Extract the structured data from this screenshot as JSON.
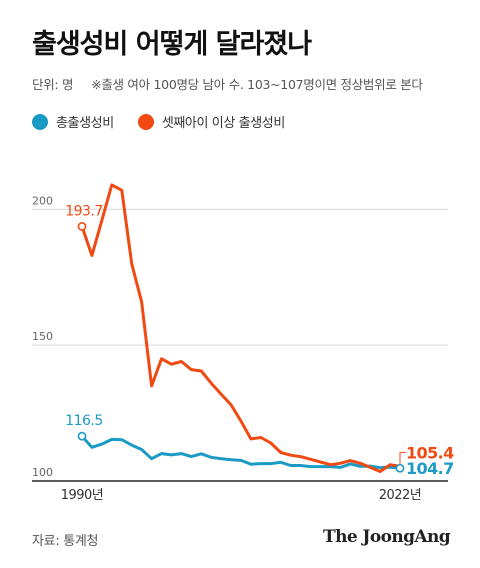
{
  "header": {
    "title": "출생성비 어떻게 달라졌나",
    "unit": "단위: 명",
    "note": "※출생 여아 100명당 남아 수. 103~107명이면 정상범위로 본다"
  },
  "legend": {
    "items": [
      {
        "label": "총출생성비",
        "color": "#1a9ac4"
      },
      {
        "label": "셋째아이 이상 출생성비",
        "color": "#f04a12"
      }
    ]
  },
  "chart_data": {
    "type": "line",
    "x": [
      1990,
      1991,
      1992,
      1993,
      1994,
      1995,
      1996,
      1997,
      1998,
      1999,
      2000,
      2001,
      2002,
      2003,
      2004,
      2005,
      2006,
      2007,
      2008,
      2009,
      2010,
      2011,
      2012,
      2013,
      2014,
      2015,
      2016,
      2017,
      2018,
      2019,
      2020,
      2021,
      2022
    ],
    "xlim": [
      1990,
      2022
    ],
    "x_tick_labels": [
      "1990년",
      "2022년"
    ],
    "ylim": [
      100,
      220
    ],
    "y_ticks": [
      100,
      150,
      200
    ],
    "series": [
      {
        "name": "총출생성비",
        "color": "#1a9ac4",
        "values": [
          116.5,
          112.4,
          113.6,
          115.3,
          115.2,
          113.2,
          111.6,
          108.2,
          110.1,
          109.6,
          110.1,
          109.0,
          110.0,
          108.7,
          108.2,
          107.8,
          107.6,
          106.2,
          106.4,
          106.4,
          106.9,
          105.7,
          105.7,
          105.3,
          105.3,
          105.3,
          105.0,
          106.3,
          105.4,
          105.5,
          104.9,
          105.1,
          104.7
        ],
        "start_label": "116.5",
        "end_label": "104.7"
      },
      {
        "name": "셋째아이 이상 출생성비",
        "color": "#f04a12",
        "values": [
          193.7,
          183.0,
          196.0,
          209.0,
          207.0,
          180.0,
          166.0,
          135.0,
          145.0,
          143.0,
          144.0,
          141.0,
          140.5,
          136.0,
          132.0,
          128.0,
          122.0,
          115.5,
          116.0,
          114.0,
          110.5,
          109.5,
          109.0,
          108.0,
          107.0,
          106.0,
          106.5,
          107.5,
          106.5,
          105.0,
          103.5,
          106.0,
          105.4
        ],
        "start_label": "193.7",
        "end_label": "105.4"
      }
    ]
  },
  "footer": {
    "source": "자료: 통계청",
    "brand": "The JoongAng"
  }
}
